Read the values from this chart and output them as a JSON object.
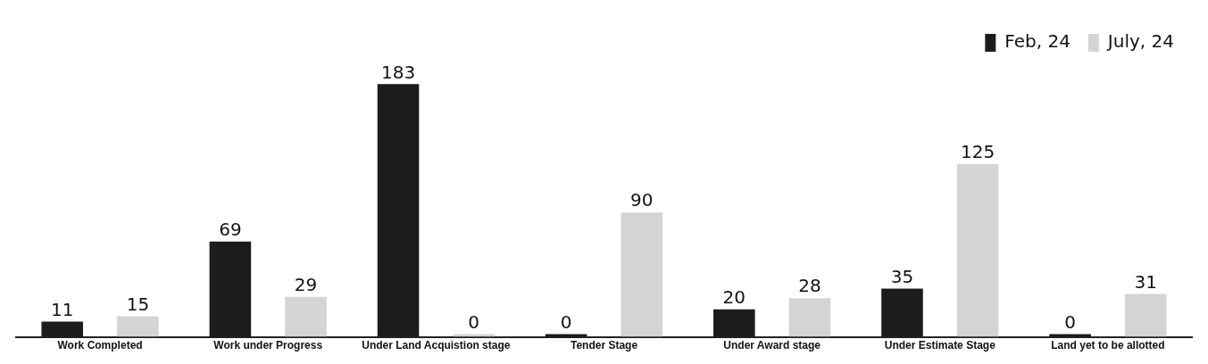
{
  "chart_data": {
    "type": "bar",
    "categories": [
      "Work Completed",
      "Work under Progress",
      "Under Land Acquistion stage",
      "Tender Stage",
      "Under Award stage",
      "Under Estimate Stage",
      "Land yet to be allotted"
    ],
    "series": [
      {
        "name": "Feb, 24",
        "color": "#1c1c1c",
        "values": [
          11,
          69,
          183,
          0,
          20,
          35,
          0
        ]
      },
      {
        "name": "July, 24",
        "color": "#d4d4d4",
        "values": [
          15,
          29,
          0,
          90,
          28,
          125,
          31
        ]
      }
    ],
    "data_labels": true,
    "legend": "top right",
    "grid": false
  }
}
